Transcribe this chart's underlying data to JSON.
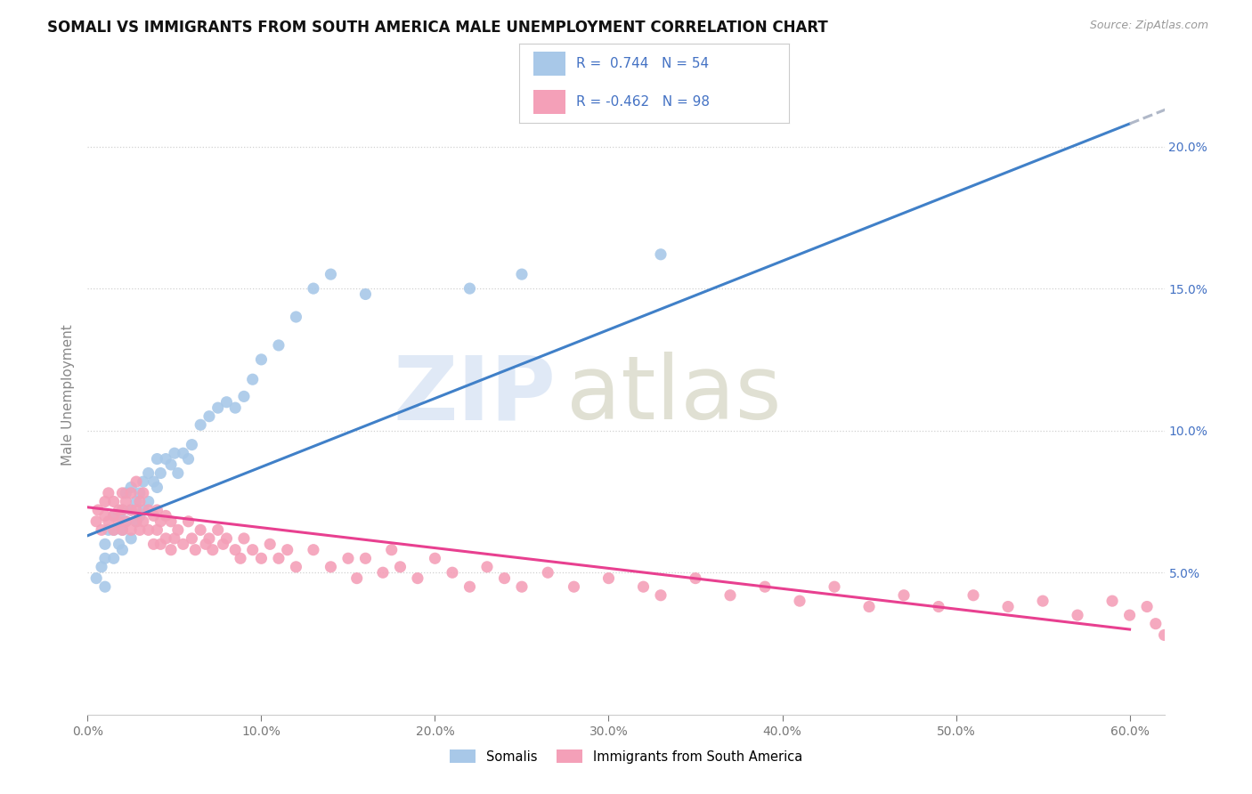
{
  "title": "SOMALI VS IMMIGRANTS FROM SOUTH AMERICA MALE UNEMPLOYMENT CORRELATION CHART",
  "source": "Source: ZipAtlas.com",
  "ylabel": "Male Unemployment",
  "xlim": [
    0.0,
    0.62
  ],
  "ylim": [
    0.0,
    0.225
  ],
  "xticks": [
    0.0,
    0.1,
    0.2,
    0.3,
    0.4,
    0.5,
    0.6
  ],
  "yticks_right": [
    0.05,
    0.1,
    0.15,
    0.2
  ],
  "somali_color": "#a8c8e8",
  "southam_color": "#f4a0b8",
  "trendline_blue_color": "#4080c8",
  "trendline_pink_color": "#e84090",
  "trendline_gray_color": "#b0b8c8",
  "legend_r_color": "#4472c4",
  "somali_N": 54,
  "southam_N": 98,
  "blue_trend_x0": 0.0,
  "blue_trend_y0": 0.063,
  "blue_trend_x1": 0.6,
  "blue_trend_y1": 0.208,
  "blue_trend_x2": 0.625,
  "blue_trend_y2": 0.214,
  "pink_trend_x0": 0.0,
  "pink_trend_y0": 0.073,
  "pink_trend_x1": 0.6,
  "pink_trend_y1": 0.03,
  "background_color": "#ffffff",
  "grid_color": "#cccccc",
  "tick_color": "#777777",
  "somali_x": [
    0.005,
    0.008,
    0.01,
    0.01,
    0.01,
    0.012,
    0.015,
    0.015,
    0.015,
    0.018,
    0.018,
    0.02,
    0.02,
    0.02,
    0.022,
    0.022,
    0.025,
    0.025,
    0.025,
    0.028,
    0.028,
    0.03,
    0.03,
    0.032,
    0.032,
    0.035,
    0.035,
    0.038,
    0.04,
    0.04,
    0.042,
    0.045,
    0.048,
    0.05,
    0.052,
    0.055,
    0.058,
    0.06,
    0.065,
    0.07,
    0.075,
    0.08,
    0.085,
    0.09,
    0.095,
    0.1,
    0.11,
    0.12,
    0.13,
    0.14,
    0.16,
    0.22,
    0.25,
    0.33
  ],
  "somali_y": [
    0.048,
    0.052,
    0.06,
    0.055,
    0.045,
    0.065,
    0.055,
    0.065,
    0.07,
    0.06,
    0.07,
    0.058,
    0.065,
    0.072,
    0.068,
    0.078,
    0.062,
    0.072,
    0.08,
    0.068,
    0.075,
    0.07,
    0.078,
    0.072,
    0.082,
    0.075,
    0.085,
    0.082,
    0.08,
    0.09,
    0.085,
    0.09,
    0.088,
    0.092,
    0.085,
    0.092,
    0.09,
    0.095,
    0.102,
    0.105,
    0.108,
    0.11,
    0.108,
    0.112,
    0.118,
    0.125,
    0.13,
    0.14,
    0.15,
    0.155,
    0.148,
    0.15,
    0.155,
    0.162
  ],
  "southam_x": [
    0.005,
    0.006,
    0.008,
    0.01,
    0.01,
    0.012,
    0.012,
    0.015,
    0.015,
    0.015,
    0.018,
    0.018,
    0.02,
    0.02,
    0.02,
    0.022,
    0.022,
    0.025,
    0.025,
    0.025,
    0.028,
    0.028,
    0.028,
    0.03,
    0.03,
    0.032,
    0.032,
    0.035,
    0.035,
    0.038,
    0.038,
    0.04,
    0.04,
    0.042,
    0.042,
    0.045,
    0.045,
    0.048,
    0.048,
    0.05,
    0.052,
    0.055,
    0.058,
    0.06,
    0.062,
    0.065,
    0.068,
    0.07,
    0.072,
    0.075,
    0.078,
    0.08,
    0.085,
    0.088,
    0.09,
    0.095,
    0.1,
    0.105,
    0.11,
    0.115,
    0.12,
    0.13,
    0.14,
    0.15,
    0.155,
    0.16,
    0.17,
    0.175,
    0.18,
    0.19,
    0.2,
    0.21,
    0.22,
    0.23,
    0.24,
    0.25,
    0.265,
    0.28,
    0.3,
    0.32,
    0.33,
    0.35,
    0.37,
    0.39,
    0.41,
    0.43,
    0.45,
    0.47,
    0.49,
    0.51,
    0.53,
    0.55,
    0.57,
    0.59,
    0.6,
    0.61,
    0.615,
    0.62
  ],
  "southam_y": [
    0.068,
    0.072,
    0.065,
    0.07,
    0.075,
    0.068,
    0.078,
    0.065,
    0.07,
    0.075,
    0.068,
    0.072,
    0.065,
    0.072,
    0.078,
    0.068,
    0.075,
    0.065,
    0.072,
    0.078,
    0.068,
    0.072,
    0.082,
    0.065,
    0.075,
    0.068,
    0.078,
    0.065,
    0.072,
    0.06,
    0.07,
    0.065,
    0.072,
    0.06,
    0.068,
    0.062,
    0.07,
    0.058,
    0.068,
    0.062,
    0.065,
    0.06,
    0.068,
    0.062,
    0.058,
    0.065,
    0.06,
    0.062,
    0.058,
    0.065,
    0.06,
    0.062,
    0.058,
    0.055,
    0.062,
    0.058,
    0.055,
    0.06,
    0.055,
    0.058,
    0.052,
    0.058,
    0.052,
    0.055,
    0.048,
    0.055,
    0.05,
    0.058,
    0.052,
    0.048,
    0.055,
    0.05,
    0.045,
    0.052,
    0.048,
    0.045,
    0.05,
    0.045,
    0.048,
    0.045,
    0.042,
    0.048,
    0.042,
    0.045,
    0.04,
    0.045,
    0.038,
    0.042,
    0.038,
    0.042,
    0.038,
    0.04,
    0.035,
    0.04,
    0.035,
    0.038,
    0.032,
    0.028
  ]
}
